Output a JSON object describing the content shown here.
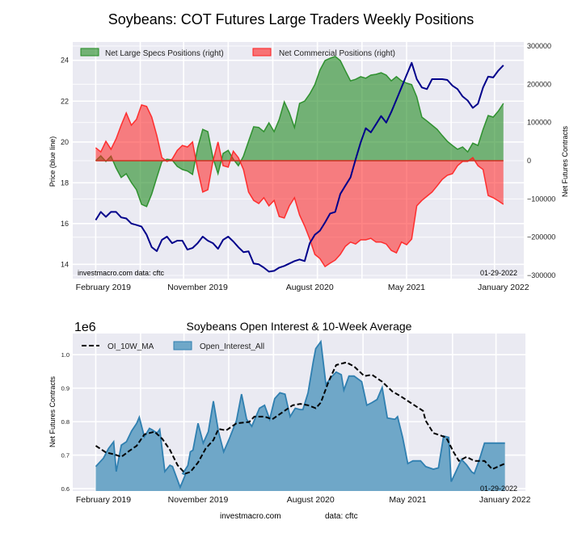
{
  "page_title": "Soybeans: COT Futures Large Traders Weekly Positions",
  "chart_data": [
    {
      "id": "positions",
      "type": "area",
      "title": "Soybeans: COT Futures Large Traders Weekly Positions",
      "xlabel": "",
      "ylabel_left": "Price (blue line)",
      "ylabel_right": "Net Futures Contracts",
      "x_unit": "week index (0 = first week Jan 2019, 160 = last week Jan 2022)",
      "xlim": [
        -9,
        168
      ],
      "ylim_left": [
        13.3,
        24.9
      ],
      "ylim_right": [
        -300000,
        300000
      ],
      "left_ticks": [
        14,
        16,
        18,
        20,
        22,
        24
      ],
      "right_ticks": [
        -300000,
        -200000,
        -100000,
        0,
        100000,
        200000,
        300000
      ],
      "right_tick_labels": [
        "−300000",
        "−200000",
        "−100000",
        "0",
        "100000",
        "200000",
        "300000"
      ],
      "x_tick_labels": [
        {
          "label": "February 2019",
          "week": 3
        },
        {
          "label": "November 2019",
          "week": 40
        },
        {
          "label": "August 2020",
          "week": 84
        },
        {
          "label": "May 2021",
          "week": 122
        },
        {
          "label": "January 2022",
          "week": 160
        }
      ],
      "x_grid_weeks": [
        0,
        17.5,
        34.5,
        52,
        69.5,
        87,
        104.5,
        122,
        139.5,
        156.5
      ],
      "grid": true,
      "legend": {
        "placement": "top-left",
        "entries": [
          "Net Large Specs Positions (right)",
          "Net Commercial Positions (right)"
        ]
      },
      "annotations": {
        "left": "investmacro.com   data: cftc",
        "right": "01-29-2022"
      },
      "colors": {
        "price": "#00008b",
        "specs": "#228b22",
        "commercial": "#ff2020",
        "background": "#eaeaf2"
      },
      "weeks": [
        0,
        2,
        4,
        6,
        8,
        10,
        12,
        14,
        16,
        18,
        20,
        22,
        24,
        26,
        28,
        30,
        32,
        34,
        36,
        38,
        40,
        42,
        44,
        46,
        48,
        50,
        52,
        54,
        56,
        58,
        60,
        62,
        64,
        66,
        68,
        70,
        72,
        74,
        76,
        78,
        80,
        82,
        84,
        86,
        88,
        90,
        92,
        94,
        96,
        98,
        100,
        102,
        104,
        106,
        108,
        110,
        112,
        114,
        116,
        118,
        120,
        122,
        124,
        126,
        128,
        130,
        132,
        134,
        136,
        138,
        140,
        142,
        144,
        146,
        148,
        150,
        152,
        154,
        156,
        158,
        160
      ],
      "series": [
        {
          "name": "Price",
          "axis": "left",
          "values": [
            16.17,
            16.57,
            16.33,
            16.57,
            16.57,
            16.3,
            16.25,
            16.0,
            15.93,
            15.85,
            15.45,
            14.84,
            14.65,
            15.2,
            15.36,
            15.04,
            15.16,
            15.16,
            14.72,
            14.8,
            15.04,
            15.36,
            15.16,
            15.04,
            14.76,
            15.2,
            15.36,
            15.12,
            14.84,
            14.6,
            14.64,
            14.04,
            14.0,
            13.84,
            13.64,
            13.68,
            13.84,
            13.92,
            14.04,
            14.16,
            14.24,
            14.16,
            15.04,
            15.45,
            15.65,
            16.05,
            16.49,
            16.57,
            17.45,
            17.86,
            18.26,
            19.14,
            19.98,
            20.67,
            20.47,
            20.87,
            21.27,
            20.95,
            21.47,
            22.07,
            22.67,
            23.28,
            23.88,
            23.08,
            22.67,
            22.59,
            23.08,
            23.08,
            23.08,
            23.04,
            22.76,
            22.59,
            22.23,
            22.03,
            21.67,
            21.87,
            22.67,
            23.2,
            23.16,
            23.5,
            23.76
          ]
        },
        {
          "name": "Net Large Specs Positions (right)",
          "axis": "right",
          "values": [
            0,
            12700,
            -2000,
            12000,
            -19000,
            -44000,
            -34000,
            -57000,
            -76000,
            -114000,
            -120000,
            -87000,
            -44000,
            -2000,
            4000,
            2000,
            -15000,
            -23000,
            -27000,
            -36000,
            34000,
            82000,
            76000,
            8000,
            -34000,
            19000,
            27000,
            4000,
            -13000,
            12000,
            51000,
            89000,
            87000,
            76000,
            99000,
            76000,
            108000,
            154000,
            125000,
            87000,
            150000,
            156000,
            175000,
            199000,
            237000,
            262000,
            268000,
            273000,
            262000,
            235000,
            209000,
            213000,
            220000,
            216000,
            224000,
            226000,
            230000,
            224000,
            209000,
            220000,
            209000,
            203000,
            199000,
            167000,
            114000,
            104000,
            93000,
            82000,
            66000,
            51000,
            40000,
            30000,
            36000,
            23000,
            46000,
            40000,
            82000,
            118000,
            114000,
            130000,
            150000
          ]
        },
        {
          "name": "Net Commercial Positions (right)",
          "axis": "right",
          "values": [
            34000,
            23000,
            51000,
            30000,
            57000,
            93000,
            125000,
            93000,
            108000,
            146000,
            142000,
            114000,
            66000,
            8000,
            -2000,
            4000,
            27000,
            40000,
            36000,
            49000,
            -23000,
            -82000,
            -76000,
            -2000,
            49000,
            -13000,
            -17000,
            25000,
            8000,
            -23000,
            -82000,
            -104000,
            -112000,
            -97000,
            -118000,
            -104000,
            -146000,
            -150000,
            -118000,
            -97000,
            -142000,
            -171000,
            -205000,
            -245000,
            -256000,
            -277000,
            -268000,
            -260000,
            -245000,
            -224000,
            -213000,
            -218000,
            -207000,
            -207000,
            -203000,
            -213000,
            -213000,
            -218000,
            -235000,
            -241000,
            -213000,
            -220000,
            -205000,
            -118000,
            -104000,
            -93000,
            -82000,
            -66000,
            -49000,
            -38000,
            -34000,
            -13000,
            -2000,
            -2000,
            8000,
            -13000,
            -23000,
            -91000,
            -97000,
            -105000,
            -114000
          ]
        }
      ]
    },
    {
      "id": "open-interest",
      "type": "area",
      "title": "Soybeans Open Interest & 10-Week Average",
      "offset_label": "1e6",
      "xlabel": "",
      "ylabel": "Net Futures Contracts",
      "x_unit": "week index (0 = first week Jan 2019, 160 = last week Jan 2022)",
      "xlim": [
        -9,
        168
      ],
      "ylim": [
        0.593,
        1.063
      ],
      "y_ticks": [
        0.6,
        0.7,
        0.8,
        0.9,
        1.0
      ],
      "y_tick_labels": [
        "0.6",
        "0.7",
        "0.8",
        "0.9",
        "1.0"
      ],
      "x_tick_labels": [
        {
          "label": "February 2019",
          "week": 3
        },
        {
          "label": "November 2019",
          "week": 40
        },
        {
          "label": "August 2020",
          "week": 84
        },
        {
          "label": "May 2021",
          "week": 122
        },
        {
          "label": "January 2022",
          "week": 160
        }
      ],
      "x_grid_weeks": [
        0,
        17.5,
        34.5,
        52,
        69.5,
        87,
        104.5,
        122,
        139.5,
        156.5
      ],
      "grid": true,
      "legend": {
        "placement": "top-left",
        "entries": [
          "OI_10W_MA",
          "Open_Interest_All"
        ]
      },
      "annotations": {
        "right": "01-29-2022"
      },
      "footer": {
        "left": "investmacro.com",
        "right": "data: cftc"
      },
      "colors": {
        "oi": "#2f7fb0",
        "oi_fill": "#6fa7c8",
        "ma": "#000000",
        "background": "#eaeaf2"
      },
      "series": [
        {
          "name": "Open_Interest_All",
          "weeks": [
            0,
            3,
            5,
            7,
            8,
            10,
            12,
            14,
            16,
            17,
            19,
            21,
            22,
            24,
            25,
            27,
            29,
            30,
            33,
            35,
            34,
            36,
            37,
            38,
            40,
            42,
            44,
            46,
            48,
            50,
            52,
            55,
            57,
            59,
            61,
            64,
            66,
            68,
            70,
            72,
            74,
            76,
            78,
            80,
            81,
            83,
            85,
            86,
            88,
            90,
            92,
            94,
            96,
            97,
            99,
            101,
            104,
            106,
            108,
            110,
            112,
            114,
            117,
            118,
            120,
            122,
            124,
            125,
            127,
            129,
            132,
            134,
            136,
            138,
            139,
            141,
            143,
            145,
            147,
            148,
            150,
            152,
            154,
            156,
            158,
            160
          ],
          "values": [
            0.666,
            0.691,
            0.72,
            0.74,
            0.651,
            0.73,
            0.74,
            0.772,
            0.795,
            0.813,
            0.755,
            0.78,
            0.776,
            0.766,
            0.777,
            0.651,
            0.67,
            0.666,
            0.604,
            0.641,
            0.645,
            0.669,
            0.71,
            0.715,
            0.795,
            0.736,
            0.77,
            0.861,
            0.77,
            0.71,
            0.745,
            0.803,
            0.882,
            0.807,
            0.786,
            0.84,
            0.849,
            0.807,
            0.869,
            0.886,
            0.882,
            0.815,
            0.84,
            0.836,
            0.836,
            0.886,
            0.977,
            1.018,
            1.039,
            0.911,
            0.932,
            0.948,
            0.94,
            0.894,
            0.936,
            0.936,
            0.919,
            0.849,
            0.857,
            0.866,
            0.902,
            0.811,
            0.807,
            0.815,
            0.753,
            0.675,
            0.683,
            0.683,
            0.683,
            0.666,
            0.658,
            0.662,
            0.757,
            0.753,
            0.621,
            0.654,
            0.687,
            0.671,
            0.65,
            0.645,
            0.687,
            0.736,
            0.736,
            0.736,
            0.736,
            0.736
          ]
        },
        {
          "name": "OI_10W_MA",
          "weeks": [
            0,
            4,
            7,
            10,
            13,
            16,
            19,
            23,
            26,
            29,
            32,
            35,
            37,
            40,
            43,
            46,
            48,
            51,
            55,
            60,
            62,
            66,
            69,
            73,
            77,
            80,
            83,
            86,
            88,
            91,
            94,
            98,
            101,
            105,
            108,
            112,
            116,
            119,
            123,
            128,
            129,
            132,
            137,
            140,
            142,
            145,
            148,
            152,
            155,
            160
          ],
          "values": [
            0.728,
            0.708,
            0.703,
            0.695,
            0.712,
            0.728,
            0.762,
            0.77,
            0.749,
            0.716,
            0.67,
            0.645,
            0.65,
            0.678,
            0.72,
            0.745,
            0.778,
            0.774,
            0.795,
            0.799,
            0.815,
            0.815,
            0.807,
            0.828,
            0.849,
            0.853,
            0.849,
            0.84,
            0.857,
            0.919,
            0.969,
            0.977,
            0.965,
            0.936,
            0.94,
            0.919,
            0.89,
            0.877,
            0.857,
            0.832,
            0.803,
            0.766,
            0.753,
            0.708,
            0.683,
            0.695,
            0.683,
            0.683,
            0.658,
            0.675
          ]
        }
      ]
    }
  ]
}
